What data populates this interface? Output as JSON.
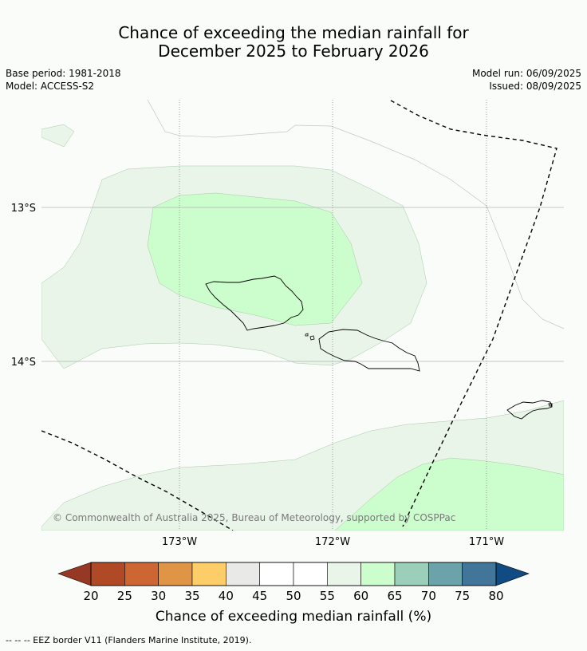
{
  "title": {
    "line1": "Chance of exceeding the median rainfall for",
    "line2": "December 2025 to February 2026"
  },
  "meta_left": {
    "base_period": "Base period: 1981-2018",
    "model": "Model: ACCESS-S2"
  },
  "meta_right": {
    "model_run": "Model run: 06/09/2025",
    "issued": "Issued: 08/09/2025"
  },
  "map": {
    "lat_labels": [
      "13°S",
      "14°S"
    ],
    "lon_labels": [
      "173°W",
      "172°W",
      "171°W"
    ],
    "copyright": "© Commonwealth of Australia 2025, Bureau of Meteorology, supported by COSPPac",
    "fill_colors": {
      "p55_60": "#e8f5e8",
      "p60_65": "#ccfdcc"
    }
  },
  "colorbar": {
    "ticks": [
      "20",
      "25",
      "30",
      "35",
      "40",
      "45",
      "50",
      "55",
      "60",
      "65",
      "70",
      "75",
      "80"
    ],
    "colors": [
      "#b04a26",
      "#cd6633",
      "#e09446",
      "#fdcd69",
      "#e9e9e7",
      "#ffffff",
      "#ffffff",
      "#e8f5e8",
      "#ccfdcc",
      "#9ccfba",
      "#6ca3aa",
      "#41769a"
    ],
    "under_color": "#953925",
    "over_color": "#104c83",
    "label": "Chance of exceeding median rainfall (%)"
  },
  "footer": {
    "eez_note": "--  --  -- EEZ border V11 (Flanders Marine Institute, 2019)."
  }
}
